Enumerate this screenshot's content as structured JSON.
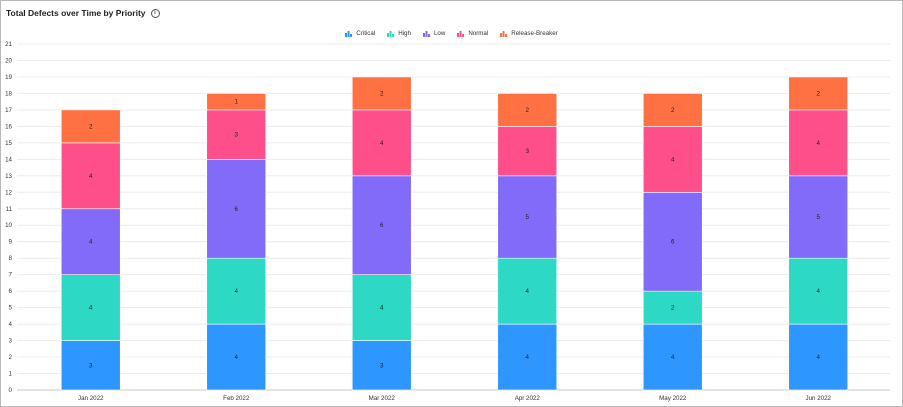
{
  "header": {
    "title": "Total Defects over Time by Priority",
    "info_icon": "info-circle-icon"
  },
  "chart_data": {
    "type": "bar",
    "stacked": true,
    "title": "Total Defects over Time by Priority",
    "xlabel": "",
    "ylabel": "",
    "categories": [
      "Jan 2022",
      "Feb 2022",
      "Mar 2022",
      "Apr 2022",
      "May 2022",
      "Jun 2022"
    ],
    "ylim": [
      0,
      21
    ],
    "yticks": [
      0,
      1,
      2,
      3,
      4,
      5,
      6,
      7,
      8,
      9,
      10,
      11,
      12,
      13,
      14,
      15,
      16,
      17,
      18,
      19,
      20,
      21
    ],
    "grid": true,
    "legend_position": "top-center",
    "series": [
      {
        "name": "Critical",
        "color": "#2e96ff",
        "values": [
          3,
          4,
          3,
          4,
          4,
          4
        ]
      },
      {
        "name": "High",
        "color": "#2dd9c5",
        "values": [
          4,
          4,
          4,
          4,
          2,
          4
        ]
      },
      {
        "name": "Low",
        "color": "#816bf8",
        "values": [
          4,
          6,
          6,
          5,
          6,
          5
        ]
      },
      {
        "name": "Normal",
        "color": "#ff4f8b",
        "values": [
          4,
          3,
          4,
          3,
          4,
          4
        ]
      },
      {
        "name": "Release-Breaker",
        "color": "#ff7043",
        "values": [
          2,
          1,
          2,
          2,
          2,
          2
        ]
      }
    ]
  }
}
